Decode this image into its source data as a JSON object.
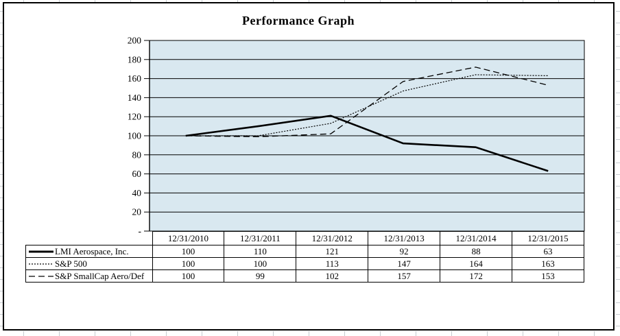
{
  "chart_data": {
    "type": "line",
    "title": "Performance Graph",
    "categories": [
      "12/31/2010",
      "12/31/2011",
      "12/31/2012",
      "12/31/2013",
      "12/31/2014",
      "12/31/2015"
    ],
    "series": [
      {
        "name": "LMI Aerospace, Inc.",
        "line_style": "solid",
        "values": [
          100,
          110,
          121,
          92,
          88,
          63
        ]
      },
      {
        "name": "S&P 500",
        "line_style": "dotted",
        "values": [
          100,
          100,
          113,
          147,
          164,
          163
        ]
      },
      {
        "name": "S&P SmallCap Aero/Def",
        "line_style": "dashed",
        "values": [
          100,
          99,
          102,
          157,
          172,
          153
        ]
      }
    ],
    "ylim": [
      0,
      200
    ],
    "ytick_step": 20,
    "ytick_labels": [
      "-",
      "20",
      "40",
      "60",
      "80",
      "100",
      "120",
      "140",
      "160",
      "180",
      "200"
    ],
    "grid": true,
    "legend_position": "table-left-column",
    "plot_bg_color": "#d9e8f0",
    "line_color": "#000000",
    "xlabel": "",
    "ylabel": ""
  }
}
